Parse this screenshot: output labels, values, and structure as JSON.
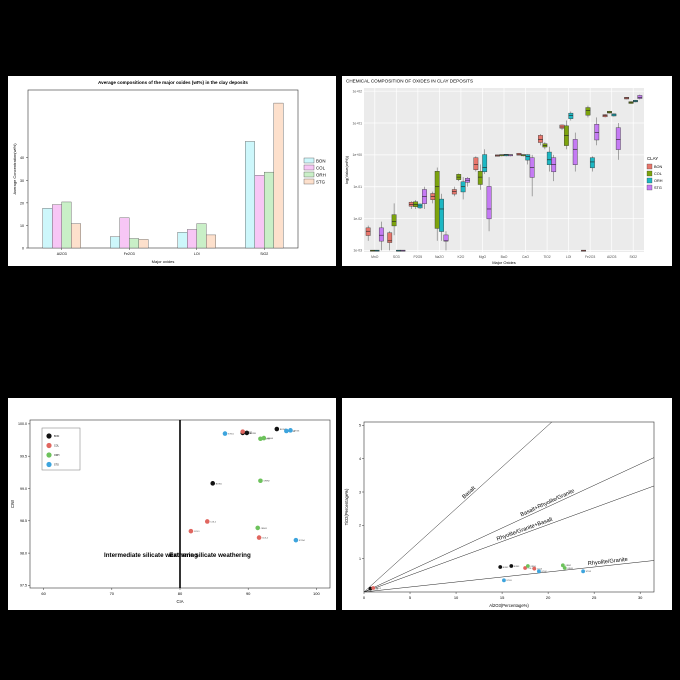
{
  "chart_data": [
    {
      "type": "bar",
      "title": "Average compositions of the major oxides (wt%) in the clay deposits",
      "xlabel": "Major oxides",
      "ylabel": "Average Concentration(wt%)",
      "categories": [
        "Al2O3",
        "Fe2O3",
        "LOI",
        "SiO2"
      ],
      "ylim": [
        0,
        70
      ],
      "yticks": [
        0,
        10,
        20,
        30,
        40
      ],
      "ytick_labels": [
        "0",
        "10",
        "20",
        "30",
        "40"
      ],
      "legend_position": "right",
      "series": [
        {
          "name": "BON",
          "color": "#cdf7fb",
          "values": [
            17.6,
            5.0,
            7.0,
            47.2
          ]
        },
        {
          "name": "COL",
          "color": "#f7c6f5",
          "values": [
            19.2,
            13.4,
            8.2,
            32.2
          ]
        },
        {
          "name": "ORH",
          "color": "#c9efc7",
          "values": [
            20.4,
            4.2,
            10.8,
            33.6
          ]
        },
        {
          "name": "STG",
          "color": "#fde0cc",
          "values": [
            10.8,
            3.8,
            5.8,
            64.2
          ]
        }
      ]
    },
    {
      "type": "box",
      "title": "CHEMICAL COMPOSITION OF OXIDES IN CLAY DEPOSITS",
      "xlabel": "Major Oxides",
      "ylabel": "log(Value(wt%))",
      "scale": "log10",
      "ytick_labels": [
        "1e-03",
        "1e-02",
        "1e-01",
        "1e+00",
        "1e+01",
        "1e+02"
      ],
      "legend_title": "CLAY",
      "legend_position": "right",
      "grid": true,
      "series": [
        {
          "name": "BON",
          "color": "#e8766c"
        },
        {
          "name": "COL",
          "color": "#7ca30d"
        },
        {
          "name": "ORH",
          "color": "#1cb7c3"
        },
        {
          "name": "STG",
          "color": "#c57bf4"
        }
      ],
      "categories": [
        "MnO",
        "SO3",
        "P2O5",
        "Na2O",
        "K2O",
        "MgO",
        "BaO",
        "CaO",
        "TiO2",
        "LOI",
        "Fe2O3",
        "Al2O3",
        "SiO2"
      ],
      "boxes": [
        {
          "cat": "MnO",
          "stats": [
            [
              0.002,
              0.003,
              0.004,
              0.005,
              0.006
            ],
            [
              0.001,
              0.001,
              0.001,
              0.001,
              0.001
            ],
            [
              0.001,
              0.001,
              0.001,
              0.001,
              0.001
            ],
            [
              0.001,
              0.002,
              0.003,
              0.005,
              0.008
            ]
          ]
        },
        {
          "cat": "SO3",
          "stats": [
            [
              0.001,
              0.0018,
              0.002,
              0.0035,
              0.004
            ],
            [
              0.003,
              0.006,
              0.008,
              0.013,
              0.03
            ],
            [
              0.001,
              0.001,
              0.001,
              0.001,
              0.001
            ],
            [
              0.001,
              0.001,
              0.001,
              0.001,
              0.001
            ]
          ]
        },
        {
          "cat": "P2O5",
          "stats": [
            [
              0.02,
              0.025,
              0.028,
              0.032,
              0.035
            ],
            [
              0.02,
              0.024,
              0.028,
              0.033,
              0.038
            ],
            [
              0.02,
              0.022,
              0.025,
              0.028,
              0.03
            ],
            [
              0.02,
              0.03,
              0.05,
              0.08,
              0.1
            ]
          ]
        },
        {
          "cat": "Na2O",
          "stats": [
            [
              0.03,
              0.04,
              0.05,
              0.06,
              0.07
            ],
            [
              0.002,
              0.005,
              0.1,
              0.3,
              0.4
            ],
            [
              0.002,
              0.004,
              0.02,
              0.04,
              0.06
            ],
            [
              0.001,
              0.002,
              0.002,
              0.003,
              0.004
            ]
          ]
        },
        {
          "cat": "K2O",
          "stats": [
            [
              0.05,
              0.06,
              0.07,
              0.08,
              0.1
            ],
            [
              0.15,
              0.17,
              0.2,
              0.24,
              0.26
            ],
            [
              0.04,
              0.07,
              0.1,
              0.14,
              0.2
            ],
            [
              0.1,
              0.14,
              0.16,
              0.18,
              0.2
            ]
          ]
        },
        {
          "cat": "MgO",
          "stats": [
            [
              0.3,
              0.35,
              0.5,
              0.8,
              0.9
            ],
            [
              0.08,
              0.12,
              0.2,
              0.3,
              0.5
            ],
            [
              0.25,
              0.3,
              0.4,
              1.0,
              1.5
            ],
            [
              0.004,
              0.01,
              0.02,
              0.1,
              0.2
            ]
          ]
        },
        {
          "cat": "BaO",
          "stats": [
            [
              0.9,
              0.92,
              0.95,
              0.98,
              1.0
            ],
            [
              0.9,
              0.95,
              1.0,
              1.0,
              1.0
            ],
            [
              0.9,
              0.95,
              1.0,
              1.02,
              1.05
            ],
            [
              0.9,
              0.95,
              1.0,
              1.0,
              1.0
            ]
          ]
        },
        {
          "cat": "CaO",
          "stats": [
            [
              1.0,
              1.0,
              1.05,
              1.1,
              1.15
            ],
            [
              0.9,
              0.95,
              1.0,
              1.0,
              1.0
            ],
            [
              0.5,
              0.7,
              0.9,
              1.0,
              1.05
            ],
            [
              0.05,
              0.2,
              0.4,
              0.8,
              1.0
            ]
          ]
        },
        {
          "cat": "TiO2",
          "stats": [
            [
              2.0,
              2.5,
              3.0,
              4.0,
              4.5
            ],
            [
              1.5,
              1.8,
              2.0,
              2.2,
              2.5
            ],
            [
              0.3,
              0.5,
              0.7,
              1.2,
              1.8
            ],
            [
              0.15,
              0.3,
              0.5,
              0.8,
              1.0
            ]
          ]
        },
        {
          "cat": "LOI",
          "stats": [
            [
              6.0,
              7.0,
              7.5,
              8.5,
              9.0
            ],
            [
              1.5,
              2.0,
              4.0,
              8.0,
              12.0
            ],
            [
              12.0,
              14.0,
              17.0,
              20.0,
              23.0
            ],
            [
              0.3,
              0.5,
              1.5,
              3.0,
              5.0
            ]
          ]
        },
        {
          "cat": "Fe2O3",
          "stats": [
            [
              0.001,
              0.001,
              0.001,
              0.001,
              0.001
            ],
            [
              15.0,
              18.0,
              25.0,
              30.0,
              35.0
            ],
            [
              0.3,
              0.4,
              0.6,
              0.8,
              0.9
            ],
            [
              2.0,
              3.0,
              5.0,
              9.0,
              15.0
            ]
          ]
        },
        {
          "cat": "Al2O3",
          "stats": [
            [
              15.0,
              16.0,
              17.0,
              18.0,
              19.0
            ],
            [
              20.0,
              21.0,
              22.0,
              23.0,
              24.0
            ],
            [
              16.0,
              17.0,
              18.0,
              19.0,
              20.0
            ],
            [
              0.7,
              1.5,
              3.0,
              7.0,
              10.0
            ]
          ]
        },
        {
          "cat": "SiO2",
          "stats": [
            [
              56.0,
              58.0,
              61.0,
              63.0,
              65.0
            ],
            [
              40.0,
              42.0,
              44.0,
              46.0,
              48.0
            ],
            [
              45.0,
              47.0,
              49.0,
              51.0,
              53.0
            ],
            [
              55.0,
              60.0,
              64.0,
              72.0,
              78.0
            ]
          ]
        }
      ]
    },
    {
      "type": "scatter",
      "xlabel": "CIA",
      "ylabel": "CIW",
      "xlim": [
        58,
        102
      ],
      "ylim": [
        97.46,
        100.06
      ],
      "xticks": [
        60,
        70,
        80,
        90,
        100
      ],
      "yticks": [
        97.5,
        98.0,
        98.5,
        99.0,
        99.5,
        100.0
      ],
      "ytick_labels": [
        "97.5",
        "98.0",
        "98.5",
        "99.0",
        "99.5",
        "100.0"
      ],
      "divider_x": 80,
      "zone_labels": [
        "Intermediate silicate weathering",
        "Extreme silicate weathering"
      ],
      "legend_position": "top-left",
      "series": [
        {
          "name": "BON",
          "color": "#111111",
          "points": [
            [
              84.8,
              99.08
            ],
            [
              89.2,
              99.86
            ],
            [
              89.8,
              99.86
            ],
            [
              94.2,
              99.92
            ]
          ]
        },
        {
          "name": "COL",
          "color": "#e0665f",
          "points": [
            [
              81.6,
              98.34
            ],
            [
              84.0,
              98.49
            ],
            [
              89.2,
              99.88
            ],
            [
              91.6,
              98.24
            ]
          ]
        },
        {
          "name": "ORH",
          "color": "#6dc25c",
          "points": [
            [
              91.4,
              98.39
            ],
            [
              91.8,
              99.12
            ],
            [
              91.8,
              99.77
            ],
            [
              92.3,
              99.78
            ]
          ]
        },
        {
          "name": "STG",
          "color": "#3da4dd",
          "points": [
            [
              86.6,
              99.85
            ],
            [
              95.6,
              99.89
            ],
            [
              96.2,
              99.9
            ],
            [
              97.0,
              98.2
            ]
          ]
        }
      ]
    },
    {
      "type": "scatter",
      "xlabel": "Al2O3(Percentage%)",
      "ylabel": "TiO2(Percentage%)",
      "xlim": [
        0,
        31.5
      ],
      "ylim": [
        0,
        5.1
      ],
      "xticks": [
        0,
        5,
        10,
        15,
        20,
        25,
        30
      ],
      "yticks": [
        1,
        2,
        3,
        4,
        5
      ],
      "ytick_labels": [
        "1",
        "2",
        "3",
        "4",
        "5"
      ],
      "lines": [
        {
          "label": "Basalt",
          "slope": 0.25
        },
        {
          "label": "Basalt+Rhyolite/Granite",
          "slope": 0.128
        },
        {
          "label": "Rhyolite/Granite+Basalt",
          "slope": 0.101
        },
        {
          "label": "Rhyolite/Granite",
          "slope": 0.03
        }
      ],
      "series": [
        {
          "name": "BON",
          "color": "#111111",
          "points": [
            [
              0.7,
              0.1
            ],
            [
              14.8,
              0.75
            ],
            [
              16.0,
              0.78
            ]
          ]
        },
        {
          "name": "COL",
          "color": "#e0665f",
          "points": [
            [
              1.0,
              0.12
            ],
            [
              17.5,
              0.72
            ],
            [
              18.5,
              0.7
            ]
          ]
        },
        {
          "name": "ORH",
          "color": "#6dc25c",
          "points": [
            [
              17.8,
              0.78
            ],
            [
              21.6,
              0.8
            ],
            [
              21.8,
              0.72
            ]
          ]
        },
        {
          "name": "STG",
          "color": "#3da4dd",
          "points": [
            [
              15.2,
              0.35
            ],
            [
              19.0,
              0.62
            ],
            [
              23.8,
              0.62
            ]
          ]
        }
      ]
    }
  ]
}
